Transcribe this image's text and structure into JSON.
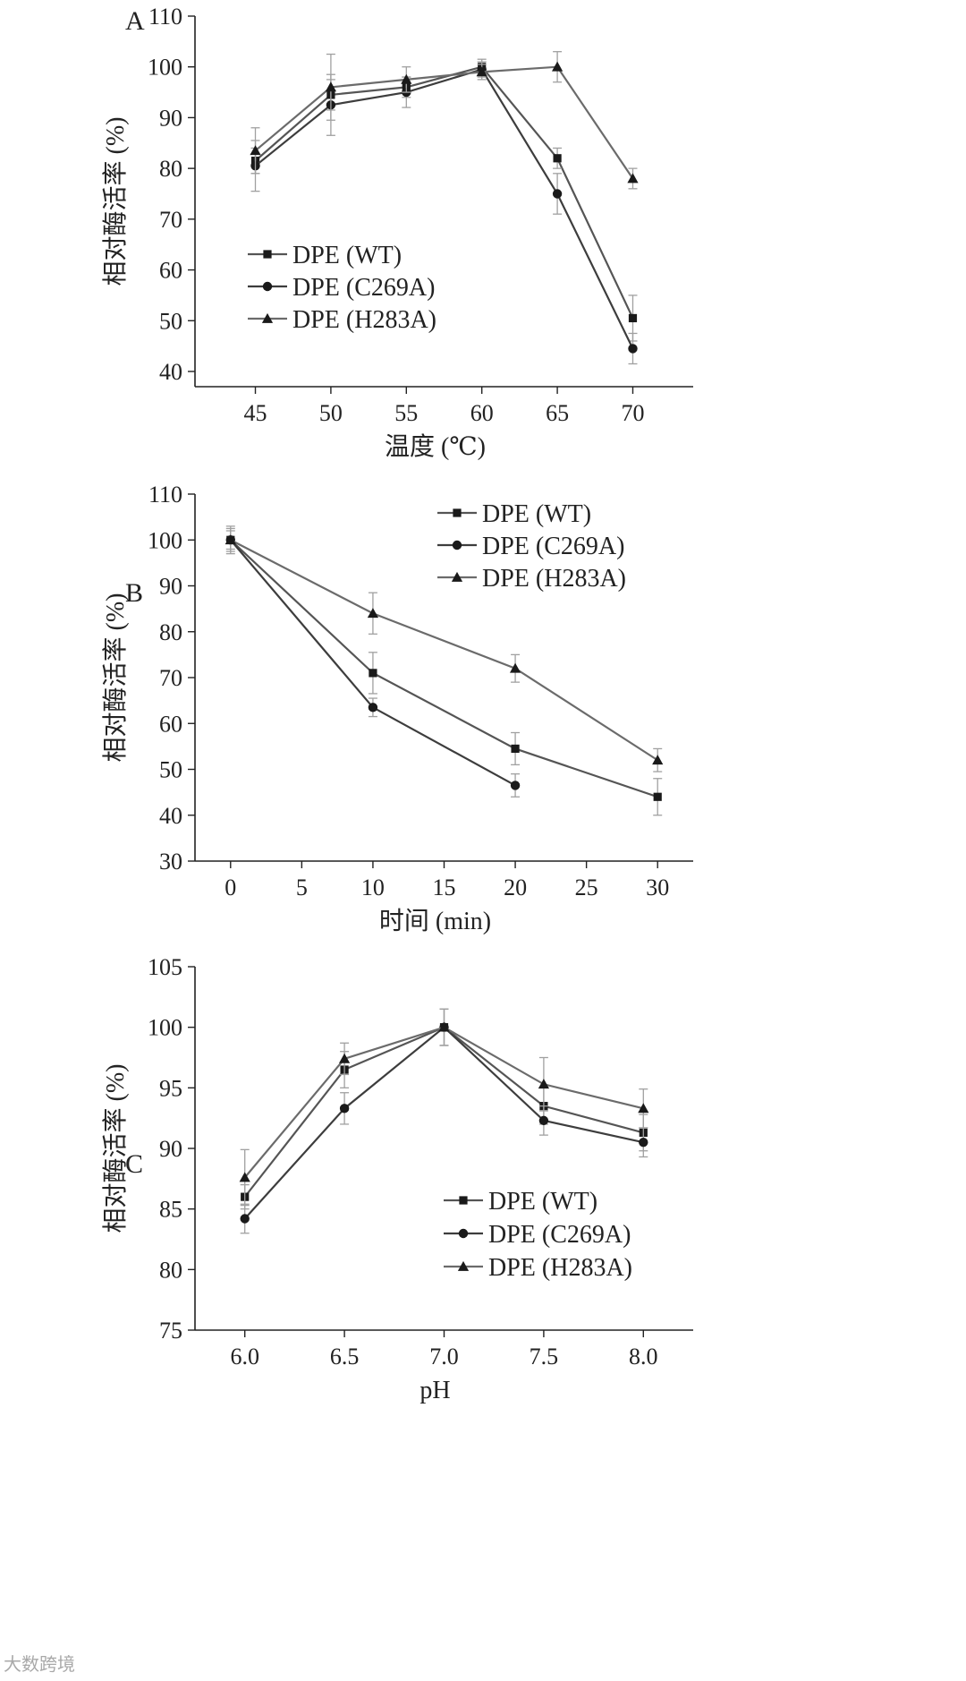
{
  "watermark": "大数跨境",
  "chart_data": [
    {
      "type": "line",
      "panel": "A",
      "xlabel": "温度 (℃)",
      "ylabel": "相对酶活率 (%)",
      "xlim": [
        41,
        74
      ],
      "ylim": [
        37,
        110
      ],
      "xticks": [
        45,
        50,
        55,
        60,
        65,
        70
      ],
      "yticks": [
        40,
        50,
        60,
        70,
        80,
        90,
        100,
        110
      ],
      "legend_position": "center-left",
      "series": [
        {
          "name": "DPE (WT)",
          "marker": "square",
          "x": [
            45,
            50,
            55,
            60,
            65,
            70
          ],
          "values": [
            81.5,
            94.5,
            96,
            100,
            82,
            50.5
          ],
          "errors": [
            2.5,
            3,
            2,
            1.5,
            2,
            4.5
          ]
        },
        {
          "name": "DPE (C269A)",
          "marker": "circle",
          "x": [
            45,
            50,
            55,
            60,
            65,
            70
          ],
          "values": [
            80.5,
            92.5,
            95,
            99.5,
            75,
            44.5
          ],
          "errors": [
            5,
            6,
            3,
            1.5,
            4,
            3
          ]
        },
        {
          "name": "DPE (H283A)",
          "marker": "triangle",
          "x": [
            45,
            50,
            55,
            60,
            65,
            70
          ],
          "values": [
            83.5,
            96,
            97.5,
            99,
            100,
            78
          ],
          "errors": [
            4.5,
            6.5,
            2.5,
            1.5,
            3,
            2
          ]
        }
      ]
    },
    {
      "type": "line",
      "panel": "B",
      "xlabel": "时间 (min)",
      "ylabel": "相对酶活率 (%)",
      "xlim": [
        -2.5,
        32.5
      ],
      "ylim": [
        30,
        110
      ],
      "xticks": [
        0,
        5,
        10,
        15,
        20,
        25,
        30
      ],
      "yticks": [
        30,
        40,
        50,
        60,
        70,
        80,
        90,
        100,
        110
      ],
      "legend_position": "top-right",
      "series": [
        {
          "name": "DPE (WT)",
          "marker": "square",
          "x": [
            0,
            10,
            20,
            30
          ],
          "values": [
            100,
            71,
            54.5,
            44
          ],
          "errors": [
            2.5,
            4.5,
            3.5,
            4
          ]
        },
        {
          "name": "DPE (C269A)",
          "marker": "circle",
          "x": [
            0,
            10,
            20
          ],
          "values": [
            100,
            63.5,
            46.5
          ],
          "errors": [
            2,
            2,
            2.5
          ]
        },
        {
          "name": "DPE (H283A)",
          "marker": "triangle",
          "x": [
            0,
            10,
            20,
            30
          ],
          "values": [
            100,
            84,
            72,
            52
          ],
          "errors": [
            3,
            4.5,
            3,
            2.5
          ]
        }
      ]
    },
    {
      "type": "line",
      "panel": "C",
      "xlabel": "pH",
      "ylabel": "相对酶活率 (%)",
      "xlim": [
        5.75,
        8.25
      ],
      "ylim": [
        75,
        105
      ],
      "xticks": [
        "6.0",
        "6.5",
        "7.0",
        "7.5",
        "8.0"
      ],
      "yticks": [
        75,
        80,
        85,
        90,
        95,
        100,
        105
      ],
      "legend_position": "bottom-right",
      "series": [
        {
          "name": "DPE (WT)",
          "marker": "square",
          "x": [
            6.0,
            6.5,
            7.0,
            7.5,
            8.0
          ],
          "values": [
            86,
            96.5,
            100,
            93.5,
            91.3
          ],
          "errors": [
            1,
            1.5,
            1.5,
            1.5,
            1.5
          ]
        },
        {
          "name": "DPE (C269A)",
          "marker": "circle",
          "x": [
            6.0,
            6.5,
            7.0,
            7.5,
            8.0
          ],
          "values": [
            84.2,
            93.3,
            100,
            92.3,
            90.5
          ],
          "errors": [
            1.2,
            1.3,
            1.5,
            1.2,
            1.2
          ]
        },
        {
          "name": "DPE (H283A)",
          "marker": "triangle",
          "x": [
            6.0,
            6.5,
            7.0,
            7.5,
            8.0
          ],
          "values": [
            87.6,
            97.4,
            100,
            95.3,
            93.3
          ],
          "errors": [
            2.3,
            1.3,
            1.5,
            2.2,
            1.6
          ]
        }
      ]
    }
  ]
}
